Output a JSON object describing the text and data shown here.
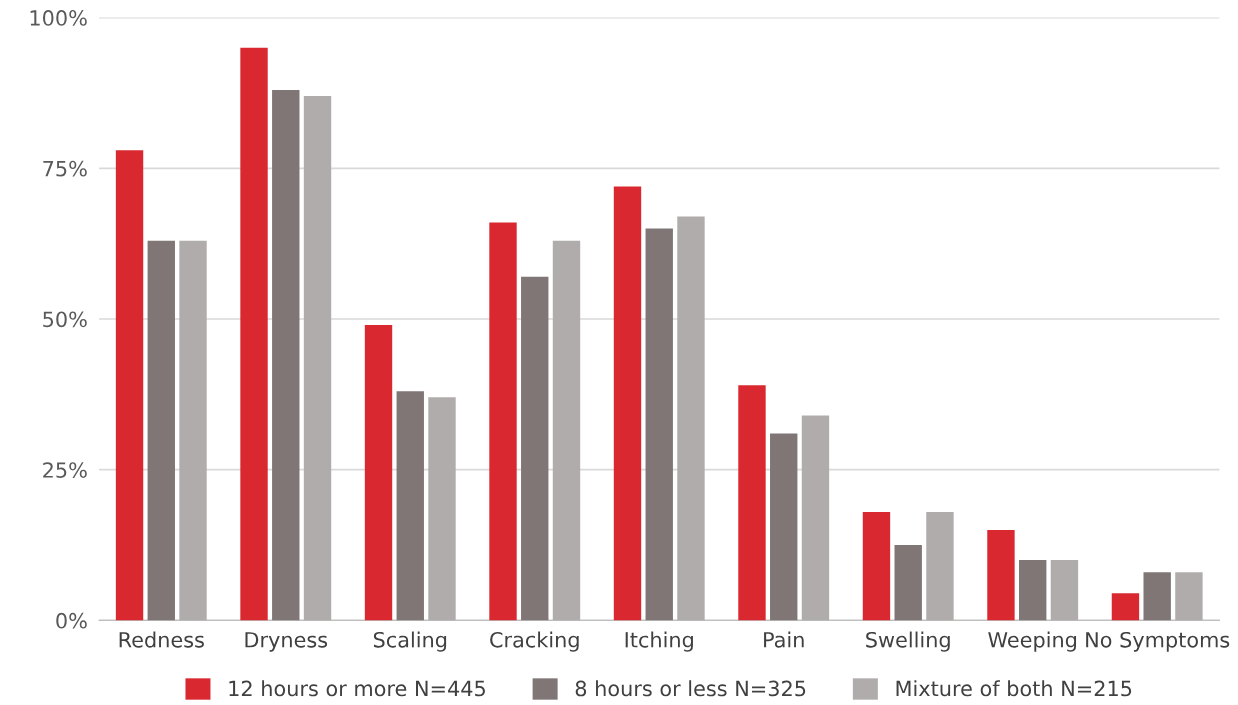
{
  "chart_data": {
    "type": "bar",
    "categories": [
      "Redness",
      "Dryness",
      "Scaling",
      "Cracking",
      "Itching",
      "Pain",
      "Swelling",
      "Weeping",
      "No Symptoms"
    ],
    "series": [
      {
        "name": "12 hours or more N=445",
        "color": "#d9282f",
        "values": [
          78,
          95,
          49,
          66,
          72,
          39,
          18,
          15,
          4.5
        ]
      },
      {
        "name": "8 hours or less N=325",
        "color": "#7f7675",
        "values": [
          63,
          88,
          38,
          57,
          65,
          31,
          12.5,
          10,
          8
        ]
      },
      {
        "name": "Mixture of both N=215",
        "color": "#b0acab",
        "values": [
          63,
          87,
          37,
          63,
          67,
          34,
          18,
          10,
          8
        ]
      }
    ],
    "ylim": [
      0,
      100
    ],
    "yticks": [
      {
        "value": 0,
        "label": "0%"
      },
      {
        "value": 25,
        "label": "25%"
      },
      {
        "value": 50,
        "label": "50%"
      },
      {
        "value": 75,
        "label": "75%"
      },
      {
        "value": 100,
        "label": "100%"
      }
    ],
    "grid": "y",
    "legend": "bottom"
  }
}
